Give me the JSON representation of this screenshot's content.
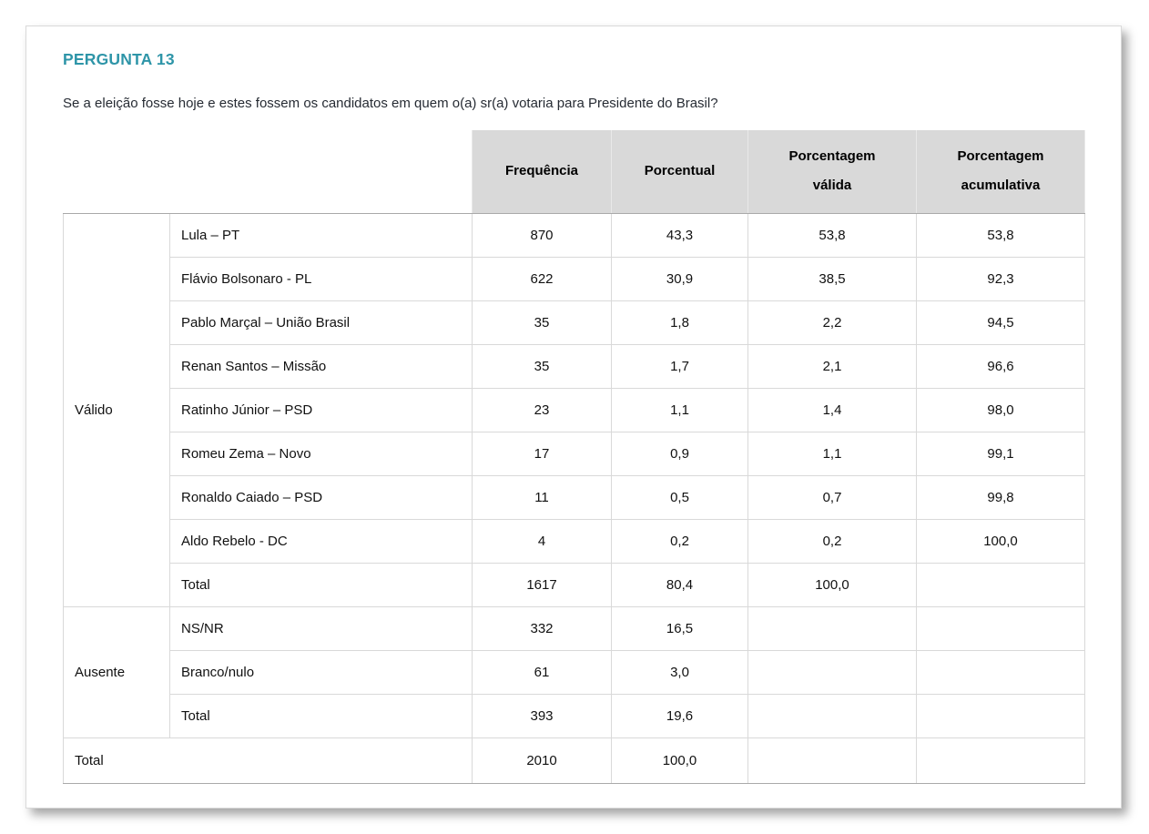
{
  "colors": {
    "accent_teal": "#2e95a8",
    "header_bg": "#d9d9d9",
    "section_line": "#a9a9a9",
    "grid_line": "#d9d9d9"
  },
  "page": {
    "title": "PERGUNTA 13",
    "question": "Se a eleição fosse hoje e estes fossem os candidatos em quem o(a) sr(a) votaria para Presidente do Brasil?"
  },
  "table": {
    "headers": [
      {
        "text": "Frequência"
      },
      {
        "text": "Porcentual"
      },
      {
        "text": "Porcentagem válida"
      },
      {
        "text": "Porcentagem acumulativa"
      }
    ],
    "groups": [
      {
        "label": "Válido",
        "rows": [
          {
            "label": "Lula – PT",
            "values": [
              "870",
              "43,3",
              "53,8",
              "53,8"
            ]
          },
          {
            "label": "Flávio Bolsonaro - PL",
            "values": [
              "622",
              "30,9",
              "38,5",
              "92,3"
            ]
          },
          {
            "label": "Pablo Marçal – União Brasil",
            "values": [
              "35",
              "1,8",
              "2,2",
              "94,5"
            ]
          },
          {
            "label": "Renan Santos – Missão",
            "values": [
              "35",
              "1,7",
              "2,1",
              "96,6"
            ]
          },
          {
            "label": "Ratinho Júnior – PSD",
            "values": [
              "23",
              "1,1",
              "1,4",
              "98,0"
            ]
          },
          {
            "label": "Romeu Zema – Novo",
            "values": [
              "17",
              "0,9",
              "1,1",
              "99,1"
            ]
          },
          {
            "label": "Ronaldo Caiado – PSD",
            "values": [
              "11",
              "0,5",
              "0,7",
              "99,8"
            ]
          },
          {
            "label": "Aldo Rebelo - DC",
            "values": [
              "4",
              "0,2",
              "0,2",
              "100,0"
            ]
          },
          {
            "label": "Total",
            "values": [
              "1617",
              "80,4",
              "100,0",
              ""
            ]
          }
        ]
      },
      {
        "label": "Ausente",
        "rows": [
          {
            "label": "NS/NR",
            "values": [
              "332",
              "16,5",
              "",
              ""
            ]
          },
          {
            "label": "Branco/nulo",
            "values": [
              "61",
              "3,0",
              "",
              ""
            ]
          },
          {
            "label": "Total",
            "values": [
              "393",
              "19,6",
              "",
              ""
            ]
          }
        ]
      }
    ],
    "grand_total": {
      "label": "Total",
      "values": [
        "2010",
        "100,0",
        "",
        ""
      ]
    }
  }
}
